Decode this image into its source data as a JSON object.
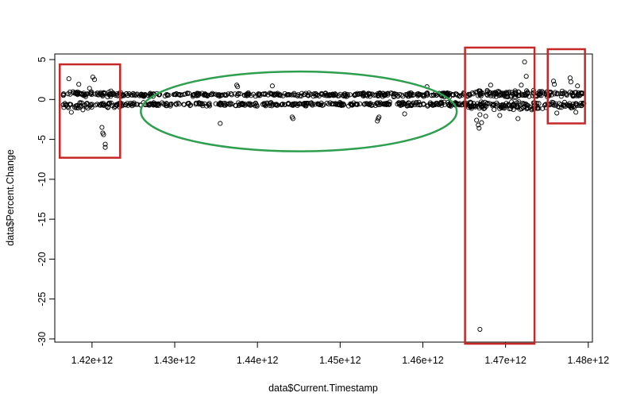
{
  "chart_data": {
    "type": "scatter",
    "title": "",
    "xlabel": "data$Current.Timestamp",
    "ylabel": "data$Percent.Change",
    "xlim": [
      1415500000000.0,
      1480500000000.0
    ],
    "ylim": [
      -30.4,
      5.7
    ],
    "x_ticks": [
      1420000000000.0,
      1430000000000.0,
      1440000000000.0,
      1450000000000.0,
      1460000000000.0,
      1470000000000.0,
      1480000000000.0
    ],
    "x_tick_labels": [
      "1.42e+12",
      "1.43e+12",
      "1.44e+12",
      "1.45e+12",
      "1.46e+12",
      "1.47e+12",
      "1.48e+12"
    ],
    "y_ticks": [
      5,
      0,
      -5,
      -10,
      -15,
      -20,
      -25,
      -30
    ],
    "y_tick_labels": [
      "5",
      "0",
      "-5",
      "-10",
      "-15",
      "-20",
      "-25",
      "-30"
    ],
    "grid": false,
    "legend": "none",
    "marker": "open-circle",
    "bands": [
      {
        "x_range": [
          1416500000000.0,
          1423500000000.0
        ],
        "y_center": 0.7,
        "y_spread": 0.45,
        "n": 70
      },
      {
        "x_range": [
          1416500000000.0,
          1423500000000.0
        ],
        "y_center": -0.7,
        "y_spread": 0.45,
        "n": 70
      },
      {
        "x_range": [
          1423500000000.0,
          1455500000000.0
        ],
        "y_center": 0.6,
        "y_spread": 0.25,
        "n": 260
      },
      {
        "x_range": [
          1423500000000.0,
          1455500000000.0
        ],
        "y_center": -0.6,
        "y_spread": 0.25,
        "n": 260
      },
      {
        "x_range": [
          1454500000000.0,
          1465500000000.0
        ],
        "y_center": 0.6,
        "y_spread": 0.3,
        "n": 110
      },
      {
        "x_range": [
          1454500000000.0,
          1465500000000.0
        ],
        "y_center": -0.6,
        "y_spread": 0.3,
        "n": 110
      },
      {
        "x_range": [
          1465500000000.0,
          1474500000000.0
        ],
        "y_center": 0.7,
        "y_spread": 0.5,
        "n": 110
      },
      {
        "x_range": [
          1465500000000.0,
          1474500000000.0
        ],
        "y_center": -0.8,
        "y_spread": 0.6,
        "n": 110
      },
      {
        "x_range": [
          1474500000000.0,
          1479500000000.0
        ],
        "y_center": 0.7,
        "y_spread": 0.4,
        "n": 50
      },
      {
        "x_range": [
          1474500000000.0,
          1479500000000.0
        ],
        "y_center": -0.7,
        "y_spread": 0.4,
        "n": 50
      }
    ],
    "outliers": [
      [
        1417200000000.0,
        2.6
      ],
      [
        1418400000000.0,
        1.9
      ],
      [
        1420100000000.0,
        2.8
      ],
      [
        1420300000000.0,
        2.5
      ],
      [
        1419700000000.0,
        1.4
      ],
      [
        1421200000000.0,
        -3.5
      ],
      [
        1421300000000.0,
        -4.2
      ],
      [
        1421400000000.0,
        -4.4
      ],
      [
        1421600000000.0,
        -5.6
      ],
      [
        1421600000000.0,
        -6.0
      ],
      [
        1418900000000.0,
        -1.3
      ],
      [
        1417500000000.0,
        -1.6
      ],
      [
        1435500000000.0,
        -3.0
      ],
      [
        1437500000000.0,
        1.8
      ],
      [
        1437600000000.0,
        1.6
      ],
      [
        1441800000000.0,
        1.7
      ],
      [
        1444200000000.0,
        -2.2
      ],
      [
        1444300000000.0,
        -2.4
      ],
      [
        1454500000000.0,
        -2.7
      ],
      [
        1454600000000.0,
        -2.4
      ],
      [
        1454700000000.0,
        -2.2
      ],
      [
        1457800000000.0,
        -1.8
      ],
      [
        1460500000000.0,
        1.6
      ],
      [
        1466500000000.0,
        -2.6
      ],
      [
        1466700000000.0,
        -3.2
      ],
      [
        1466800000000.0,
        -3.6
      ],
      [
        1467100000000.0,
        -2.9
      ],
      [
        1466900000000.0,
        -1.9
      ],
      [
        1468200000000.0,
        1.8
      ],
      [
        1467600000000.0,
        -2.1
      ],
      [
        1469300000000.0,
        -2.0
      ],
      [
        1471500000000.0,
        -2.4
      ],
      [
        1472300000000.0,
        4.7
      ],
      [
        1472500000000.0,
        2.9
      ],
      [
        1471900000000.0,
        1.8
      ],
      [
        1466900000000.0,
        -28.8
      ],
      [
        1475800000000.0,
        2.3
      ],
      [
        1475900000000.0,
        1.9
      ],
      [
        1477800000000.0,
        2.7
      ],
      [
        1477900000000.0,
        2.2
      ],
      [
        1478700000000.0,
        1.7
      ],
      [
        1476200000000.0,
        -1.7
      ],
      [
        1478500000000.0,
        -1.6
      ]
    ],
    "annotations": [
      {
        "shape": "rectangle",
        "color": "#c62828",
        "x_range": [
          1416100000000.0,
          1423400000000.0
        ],
        "y_range": [
          -7.3,
          4.4
        ]
      },
      {
        "shape": "rectangle",
        "color": "#c62828",
        "x_range": [
          1465100000000.0,
          1473500000000.0
        ],
        "y_range": [
          -30.6,
          6.5
        ]
      },
      {
        "shape": "rectangle",
        "color": "#c62828",
        "x_range": [
          1475100000000.0,
          1479600000000.0
        ],
        "y_range": [
          -3.0,
          6.3
        ]
      },
      {
        "shape": "ellipse",
        "color": "#2e9e4f",
        "x_range": [
          1425900000000.0,
          1464100000000.0
        ],
        "y_range": [
          -6.5,
          3.5
        ]
      }
    ]
  }
}
